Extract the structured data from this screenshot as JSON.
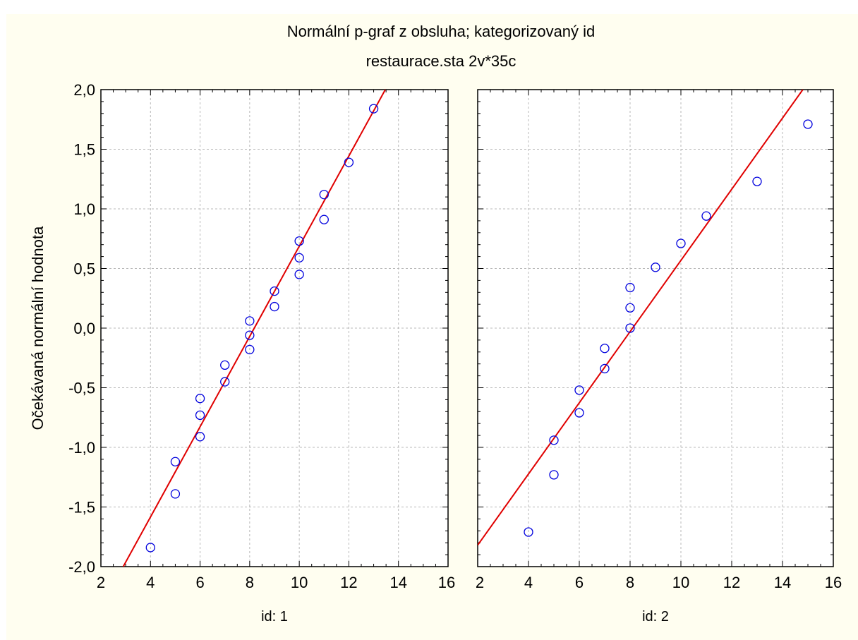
{
  "chart_data": {
    "type": "scatter",
    "title": "Normální p-graf z obsluha; kategorizovaný id",
    "subtitle": "restaurace.sta 2v*35c",
    "ylabel": "Očekávaná normální hodnota",
    "xlim": [
      2,
      16
    ],
    "ylim": [
      -2.0,
      2.0
    ],
    "x_ticks": [
      "2",
      "4",
      "6",
      "8",
      "10",
      "12",
      "14",
      "16"
    ],
    "y_ticks": [
      "-2,0",
      "-1,5",
      "-1,0",
      "-0,5",
      "0,0",
      "0,5",
      "1,0",
      "1,5",
      "2,0"
    ],
    "grid": true,
    "colors": {
      "points": "#0000dd",
      "line": "#e00000",
      "background": "#fffef0"
    },
    "panels": [
      {
        "label": "id: 1",
        "fit_line": {
          "x": [
            2.9,
            13.47
          ],
          "y": [
            -2.0,
            2.0
          ]
        },
        "points": [
          {
            "x": 4,
            "y": -1.84
          },
          {
            "x": 5,
            "y": -1.39
          },
          {
            "x": 5,
            "y": -1.12
          },
          {
            "x": 6,
            "y": -0.91
          },
          {
            "x": 6,
            "y": -0.73
          },
          {
            "x": 6,
            "y": -0.59
          },
          {
            "x": 7,
            "y": -0.45
          },
          {
            "x": 7,
            "y": -0.31
          },
          {
            "x": 8,
            "y": -0.18
          },
          {
            "x": 8,
            "y": -0.06
          },
          {
            "x": 8,
            "y": 0.06
          },
          {
            "x": 9,
            "y": 0.18
          },
          {
            "x": 9,
            "y": 0.31
          },
          {
            "x": 10,
            "y": 0.45
          },
          {
            "x": 10,
            "y": 0.59
          },
          {
            "x": 10,
            "y": 0.73
          },
          {
            "x": 11,
            "y": 0.91
          },
          {
            "x": 11,
            "y": 1.12
          },
          {
            "x": 12,
            "y": 1.39
          },
          {
            "x": 13,
            "y": 1.84
          }
        ]
      },
      {
        "label": "id: 2",
        "fit_line": {
          "x": [
            2.0,
            14.8
          ],
          "y": [
            -1.82,
            2.0
          ]
        },
        "points": [
          {
            "x": 4,
            "y": -1.71
          },
          {
            "x": 5,
            "y": -1.23
          },
          {
            "x": 5,
            "y": -0.94
          },
          {
            "x": 6,
            "y": -0.71
          },
          {
            "x": 6,
            "y": -0.52
          },
          {
            "x": 7,
            "y": -0.34
          },
          {
            "x": 7,
            "y": -0.17
          },
          {
            "x": 8,
            "y": 0.0
          },
          {
            "x": 8,
            "y": 0.17
          },
          {
            "x": 8,
            "y": 0.34
          },
          {
            "x": 9,
            "y": 0.51
          },
          {
            "x": 10,
            "y": 0.71
          },
          {
            "x": 11,
            "y": 0.94
          },
          {
            "x": 13,
            "y": 1.23
          },
          {
            "x": 15,
            "y": 1.71
          }
        ]
      }
    ]
  }
}
